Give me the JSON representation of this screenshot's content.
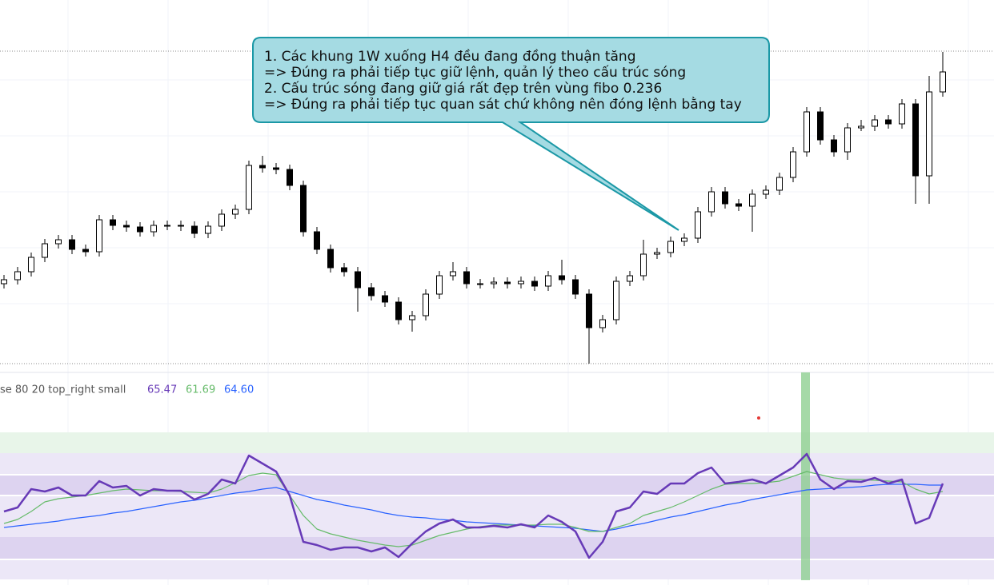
{
  "chart_data": [
    {
      "type": "candlestick",
      "open": [
        105,
        110,
        120,
        138,
        155,
        160,
        148,
        145,
        185,
        178,
        176,
        170,
        178,
        178,
        177,
        168,
        177,
        192,
        198,
        253,
        250,
        248,
        228,
        170,
        148,
        125,
        120,
        100,
        90,
        82,
        60,
        65,
        92,
        115,
        120,
        105,
        105,
        107,
        105,
        108,
        102,
        115,
        110,
        92,
        50,
        60,
        108,
        115,
        142,
        144,
        158,
        162,
        195,
        220,
        205,
        202,
        217,
        222,
        238,
        270,
        320,
        285,
        270,
        300,
        302,
        310,
        305,
        330,
        240,
        345
      ],
      "high": [
        116,
        126,
        144,
        161,
        166,
        166,
        154,
        191,
        191,
        184,
        182,
        184,
        184,
        184,
        183,
        183,
        198,
        204,
        259,
        265,
        256,
        254,
        234,
        176,
        154,
        131,
        126,
        106,
        96,
        88,
        71,
        98,
        121,
        132,
        126,
        111,
        113,
        113,
        114,
        114,
        121,
        135,
        116,
        98,
        66,
        114,
        121,
        160,
        150,
        164,
        168,
        201,
        226,
        226,
        211,
        223,
        228,
        244,
        276,
        326,
        326,
        291,
        306,
        310,
        316,
        316,
        336,
        336,
        365,
        395
      ],
      "low": [
        99,
        104,
        114,
        132,
        149,
        142,
        139,
        139,
        172,
        170,
        164,
        164,
        172,
        171,
        162,
        162,
        171,
        186,
        192,
        244,
        242,
        222,
        164,
        142,
        119,
        114,
        70,
        84,
        76,
        54,
        45,
        59,
        86,
        109,
        99,
        99,
        99,
        99,
        99,
        96,
        96,
        104,
        86,
        5,
        44,
        54,
        102,
        109,
        136,
        138,
        152,
        156,
        189,
        199,
        196,
        170,
        211,
        216,
        232,
        264,
        279,
        264,
        260,
        296,
        296,
        299,
        299,
        205,
        205,
        339
      ],
      "close": [
        110,
        120,
        138,
        155,
        160,
        148,
        145,
        185,
        178,
        176,
        170,
        178,
        178,
        177,
        168,
        177,
        192,
        198,
        253,
        250,
        248,
        228,
        170,
        148,
        125,
        120,
        100,
        90,
        82,
        60,
        65,
        92,
        115,
        120,
        105,
        105,
        107,
        105,
        108,
        102,
        115,
        110,
        92,
        50,
        60,
        108,
        115,
        142,
        144,
        158,
        162,
        195,
        220,
        205,
        202,
        217,
        222,
        238,
        270,
        320,
        285,
        270,
        300,
        302,
        310,
        305,
        330,
        240,
        345,
        370
      ],
      "up_color": "#ffffff",
      "down_color": "#000000",
      "ylim": [
        0,
        460
      ]
    },
    {
      "type": "line",
      "title": "se 80 20 top_right small",
      "value_labels": [
        "65.47",
        "61.69",
        "64.60"
      ],
      "series": [
        {
          "color": "#673ab7",
          "values": [
            85,
            90,
            113,
            110,
            115,
            105,
            105,
            123,
            115,
            117,
            105,
            113,
            111,
            111,
            100,
            107,
            125,
            120,
            155,
            145,
            135,
            105,
            47,
            43,
            37,
            40,
            40,
            35,
            40,
            28,
            45,
            60,
            70,
            75,
            65,
            65,
            67,
            65,
            69,
            65,
            80,
            72,
            60,
            27,
            47,
            85,
            90,
            110,
            107,
            120,
            120,
            133,
            140,
            120,
            122,
            125,
            120,
            130,
            140,
            157,
            125,
            113,
            123,
            122,
            127,
            120,
            125,
            70,
            77,
            120
          ]
        },
        {
          "color": "#66bb6a",
          "values": [
            70,
            75,
            85,
            97,
            101,
            103,
            105,
            108,
            111,
            113,
            112,
            111,
            111,
            110,
            109,
            108,
            113,
            121,
            130,
            133,
            131,
            105,
            80,
            63,
            57,
            53,
            49,
            46,
            43,
            41,
            43,
            49,
            55,
            59,
            63,
            66,
            68,
            68,
            68,
            68,
            69,
            69,
            65,
            60,
            60,
            65,
            70,
            80,
            85,
            90,
            97,
            105,
            113,
            119,
            120,
            120,
            121,
            123,
            129,
            135,
            131,
            127,
            125,
            125,
            124,
            123,
            122,
            113,
            107,
            110
          ]
        },
        {
          "color": "#2962ff",
          "values": [
            65,
            67,
            69,
            71,
            73,
            76,
            78,
            80,
            83,
            85,
            88,
            91,
            94,
            97,
            99,
            102,
            105,
            108,
            110,
            113,
            115,
            110,
            105,
            100,
            97,
            93,
            90,
            87,
            83,
            80,
            78,
            77,
            75,
            74,
            72,
            71,
            70,
            69,
            68,
            67,
            66,
            65,
            64,
            62,
            60,
            63,
            67,
            70,
            74,
            78,
            81,
            85,
            89,
            93,
            96,
            100,
            103,
            106,
            109,
            112,
            113,
            114,
            115,
            116,
            118,
            119,
            119,
            119,
            118,
            118
          ]
        }
      ],
      "ylim": [
        0,
        184
      ]
    }
  ],
  "annotation": {
    "lines": [
      "1. Các khung 1W xuống H4 đều đang đồng thuận tăng",
      "=> Đúng ra phải tiếp tục giữ lệnh, quản lý theo cấu trúc sóng",
      "2. Cấu trúc sóng đang giữ giá rất đẹp trên vùng fibo 0.236",
      "=> Đúng ra phải tiếp tục quan sát chứ không nên đóng lệnh bằng tay"
    ]
  }
}
